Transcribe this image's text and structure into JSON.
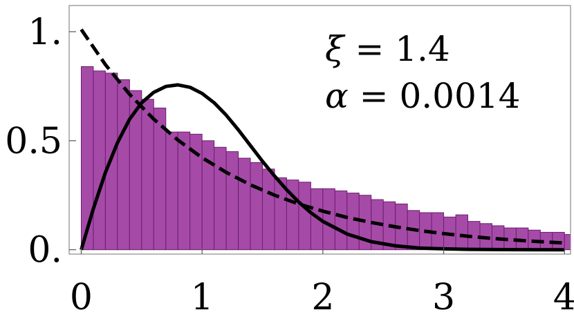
{
  "chart_data": {
    "type": "bar",
    "title": "",
    "xlabel": "",
    "ylabel": "",
    "xlim": [
      -0.1,
      4.05
    ],
    "ylim": [
      -0.02,
      1.12
    ],
    "grid": false,
    "x_ticks": [
      {
        "value": 0,
        "label": "0"
      },
      {
        "value": 1,
        "label": "1"
      },
      {
        "value": 2,
        "label": "2"
      },
      {
        "value": 3,
        "label": "3"
      },
      {
        "value": 4,
        "label": "4"
      }
    ],
    "y_ticks": [
      {
        "value": 0,
        "label": "0."
      },
      {
        "value": 0.5,
        "label": "0.5"
      },
      {
        "value": 1.0,
        "label": "1."
      }
    ],
    "annotations": [
      {
        "symbol": "ξ",
        "text": " = 1.4"
      },
      {
        "symbol": "α",
        "text": " = 0.0014"
      }
    ],
    "histogram": {
      "bin_width": 0.1,
      "x_start": 0,
      "color": "#a64aa8",
      "edge_color": "#6a1f6d",
      "values": [
        0.84,
        0.82,
        0.81,
        0.78,
        0.73,
        0.69,
        0.65,
        0.54,
        0.54,
        0.53,
        0.5,
        0.47,
        0.45,
        0.42,
        0.4,
        0.37,
        0.33,
        0.32,
        0.31,
        0.28,
        0.28,
        0.27,
        0.26,
        0.25,
        0.23,
        0.22,
        0.21,
        0.18,
        0.17,
        0.17,
        0.15,
        0.16,
        0.13,
        0.12,
        0.11,
        0.1,
        0.1,
        0.09,
        0.08,
        0.08,
        0.07,
        0.08,
        0.07,
        0.06,
        0.07,
        0.06,
        0.06,
        0.05,
        0.05,
        0.08,
        0.04,
        0.04,
        0.04,
        0.03,
        0.03,
        0.03,
        0.03,
        0.02,
        0.02,
        0.02,
        0.02,
        0.02
      ]
    },
    "curves": [
      {
        "style": "dashed",
        "color": "#000000",
        "x": [
          0,
          0.2,
          0.4,
          0.6,
          0.8,
          1.0,
          1.2,
          1.4,
          1.6,
          1.8,
          2.0,
          2.2,
          2.4,
          2.6,
          2.8,
          3.0,
          3.2,
          3.4,
          3.6,
          3.8,
          4.0
        ],
        "y": [
          1.01,
          0.849,
          0.713,
          0.599,
          0.503,
          0.422,
          0.355,
          0.298,
          0.25,
          0.21,
          0.177,
          0.148,
          0.125,
          0.105,
          0.088,
          0.074,
          0.062,
          0.052,
          0.044,
          0.037,
          0.031
        ]
      },
      {
        "style": "solid",
        "color": "#000000",
        "x": [
          0,
          0.1,
          0.2,
          0.3,
          0.4,
          0.5,
          0.6,
          0.7,
          0.8,
          0.9,
          1.0,
          1.1,
          1.2,
          1.3,
          1.4,
          1.5,
          1.6,
          1.7,
          1.8,
          1.9,
          2.0,
          2.2,
          2.4,
          2.6,
          2.8,
          3.0,
          3.2,
          3.5,
          4.0
        ],
        "y": [
          0.0,
          0.187,
          0.354,
          0.491,
          0.598,
          0.674,
          0.722,
          0.749,
          0.756,
          0.745,
          0.717,
          0.674,
          0.617,
          0.55,
          0.478,
          0.406,
          0.338,
          0.275,
          0.219,
          0.17,
          0.13,
          0.072,
          0.037,
          0.018,
          0.008,
          0.004,
          0.002,
          0.0005,
          0.0
        ]
      }
    ]
  }
}
